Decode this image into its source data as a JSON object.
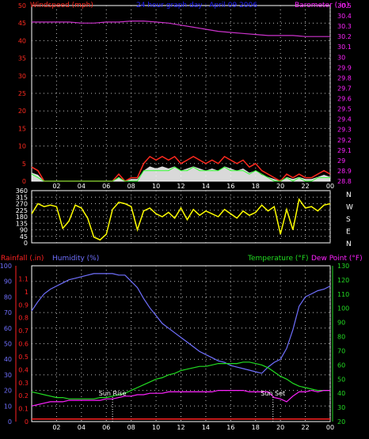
{
  "colors": {
    "background": "#000000",
    "frame": "#ffffff",
    "grid": "#c0c0c0",
    "windspeed": "#ff2a1f",
    "gust": "#ff2a1f",
    "wind_avg": "#33ff33",
    "wind_fill": "#ffffff",
    "barometer": "#cc33cc",
    "direction": "#ffff00",
    "humidity": "#7070ff",
    "temperature": "#22dd22",
    "dewpoint": "#ff22ff",
    "rainfall": "#ff2222",
    "sun_marker": "#ffffff"
  },
  "header": {
    "left": "Windspeed (mph)",
    "center": "24 hour graph day : April 09 2006",
    "right": "Barometer (.in)"
  },
  "lower_header": {
    "rainfall": "Rainfall (.in)",
    "humidity": "Humidity (%)",
    "temperature": "Temperature (°F)",
    "dewpoint": "Dew Point (°F)"
  },
  "sun_labels": {
    "rise": "Sun Rise",
    "set": "Sun Set"
  },
  "chart_data": [
    {
      "type": "line",
      "name": "wind_barometer",
      "x_ticks": [
        "02",
        "04",
        "06",
        "08",
        "10",
        "12",
        "14",
        "16",
        "18",
        "20",
        "22",
        "00"
      ],
      "xlim": [
        0,
        24
      ],
      "y_left": {
        "label": "Windspeed (mph)",
        "ylim": [
          0,
          50
        ],
        "ticks": [
          0,
          5,
          10,
          15,
          20,
          25,
          30,
          35,
          40,
          45,
          50
        ]
      },
      "y_right": {
        "label": "Barometer (.in)",
        "ylim": [
          28.8,
          30.5
        ],
        "ticks": [
          "28.8",
          "28.9",
          "29",
          "29.1",
          "29.2",
          "29.3",
          "29.4",
          "29.5",
          "29.6",
          "29.7",
          "29.8",
          "29.9",
          "30",
          "30.1",
          "30.2",
          "30.3",
          "30.4",
          "30.5"
        ]
      },
      "grid": true,
      "series": [
        {
          "name": "Barometer",
          "axis": "right",
          "x": [
            0,
            1,
            2,
            3,
            4,
            5,
            6,
            7,
            8,
            9,
            10,
            11,
            12,
            13,
            14,
            15,
            16,
            17,
            18,
            19,
            20,
            21,
            22,
            23,
            24
          ],
          "values": [
            30.34,
            30.34,
            30.34,
            30.34,
            30.33,
            30.33,
            30.34,
            30.34,
            30.35,
            30.35,
            30.34,
            30.33,
            30.31,
            30.29,
            30.27,
            30.25,
            30.24,
            30.23,
            30.22,
            30.21,
            30.21,
            30.21,
            30.2,
            30.2,
            30.2
          ]
        },
        {
          "name": "Gust",
          "axis": "left",
          "x": [
            0,
            0.5,
            1,
            1.5,
            2,
            2.5,
            3,
            3.5,
            4,
            4.5,
            5,
            5.5,
            6,
            6.5,
            7,
            7.5,
            8,
            8.5,
            9,
            9.5,
            10,
            10.5,
            11,
            11.5,
            12,
            12.5,
            13,
            13.5,
            14,
            14.5,
            15,
            15.5,
            16,
            16.5,
            17,
            17.5,
            18,
            18.5,
            19,
            19.5,
            20,
            20.5,
            21,
            21.5,
            22,
            22.5,
            23,
            23.5,
            24
          ],
          "values": [
            4,
            3,
            0,
            0,
            0,
            0,
            0,
            0,
            0,
            0,
            0,
            0,
            0,
            0,
            2,
            0,
            1,
            1,
            5,
            7,
            6,
            7,
            6,
            7,
            5,
            6,
            7,
            6,
            5,
            6,
            5,
            7,
            6,
            5,
            6,
            4,
            5,
            3,
            2,
            1,
            0,
            2,
            1,
            2,
            1,
            1,
            2,
            3,
            2
          ]
        },
        {
          "name": "Windspeed",
          "axis": "left",
          "x": [
            0,
            0.5,
            1,
            1.5,
            2,
            2.5,
            3,
            3.5,
            4,
            4.5,
            5,
            5.5,
            6,
            6.5,
            7,
            7.5,
            8,
            8.5,
            9,
            9.5,
            10,
            10.5,
            11,
            11.5,
            12,
            12.5,
            13,
            13.5,
            14,
            14.5,
            15,
            15.5,
            16,
            16.5,
            17,
            17.5,
            18,
            18.5,
            19,
            19.5,
            20,
            20.5,
            21,
            21.5,
            22,
            22.5,
            23,
            23.5,
            24
          ],
          "values": [
            2,
            1,
            0,
            0,
            0,
            0,
            0,
            0,
            0,
            0,
            0,
            0,
            0,
            0,
            1,
            0,
            0,
            0,
            3,
            3,
            3,
            3,
            3,
            4,
            3,
            3,
            4,
            3,
            3,
            3,
            3,
            4,
            3,
            3,
            3,
            2,
            3,
            2,
            1,
            0,
            0,
            1,
            0,
            1,
            0,
            0,
            1,
            1,
            1
          ]
        }
      ]
    },
    {
      "type": "scatter",
      "name": "wind_direction",
      "x_ticks": [
        "02",
        "04",
        "06",
        "08",
        "10",
        "12",
        "14",
        "16",
        "18",
        "20",
        "22",
        "00"
      ],
      "xlim": [
        0,
        24
      ],
      "y_left": {
        "ylim": [
          0,
          360
        ],
        "ticks": [
          0,
          45,
          90,
          135,
          180,
          225,
          270,
          315,
          360
        ]
      },
      "y_right_labels": [
        "N",
        "W",
        "S",
        "E",
        "N"
      ],
      "grid": true,
      "series": [
        {
          "name": "Direction",
          "x": [
            0,
            0.5,
            1,
            1.5,
            2,
            2.5,
            3,
            3.5,
            4,
            4.5,
            5,
            5.5,
            6,
            6.5,
            7,
            7.5,
            8,
            8.5,
            9,
            9.5,
            10,
            10.5,
            11,
            11.5,
            12,
            12.5,
            13,
            13.5,
            14,
            14.5,
            15,
            15.5,
            16,
            16.5,
            17,
            17.5,
            18,
            18.5,
            19,
            19.5,
            20,
            20.5,
            21,
            21.5,
            22,
            22.5,
            23,
            23.5,
            24
          ],
          "values": [
            200,
            270,
            250,
            260,
            250,
            100,
            150,
            260,
            240,
            170,
            40,
            20,
            60,
            230,
            280,
            270,
            250,
            90,
            220,
            240,
            200,
            180,
            210,
            170,
            240,
            160,
            230,
            190,
            220,
            200,
            180,
            230,
            200,
            170,
            220,
            190,
            210,
            260,
            220,
            250,
            60,
            230,
            90,
            300,
            240,
            250,
            220,
            260,
            270
          ]
        }
      ]
    },
    {
      "type": "line",
      "name": "rain_humidity_temp",
      "x_ticks": [
        "02",
        "04",
        "06",
        "08",
        "10",
        "12",
        "14",
        "16",
        "18",
        "20",
        "22",
        "00"
      ],
      "xlim": [
        0,
        24
      ],
      "y_rain": {
        "label": "Rainfall (.in)",
        "ylim": [
          0,
          1.2
        ],
        "ticks": [
          "0",
          "0.1",
          "0.2",
          "0.3",
          "0.4",
          "0.5",
          "0.6",
          "0.7",
          "0.8",
          "0.9",
          "1",
          "1.1"
        ]
      },
      "y_humidity": {
        "label": "Humidity (%)",
        "ylim": [
          0,
          100
        ],
        "ticks": [
          0,
          10,
          20,
          30,
          40,
          50,
          60,
          70,
          80,
          90,
          100
        ]
      },
      "y_temp": {
        "label": "Temperature (°F)",
        "ylim": [
          20,
          130
        ],
        "ticks": [
          20,
          30,
          40,
          50,
          60,
          70,
          80,
          90,
          100,
          110,
          120,
          130
        ]
      },
      "grid": true,
      "annotations": [
        {
          "text": "Sun Rise",
          "x": 6.5
        },
        {
          "text": "Sun Set",
          "x": 19.4
        }
      ],
      "series": [
        {
          "name": "Humidity",
          "axis": "humidity",
          "x": [
            0,
            0.5,
            1,
            1.5,
            2,
            2.5,
            3,
            3.5,
            4,
            4.5,
            5,
            5.5,
            6,
            6.5,
            7,
            7.5,
            8,
            8.5,
            9,
            9.5,
            10,
            10.5,
            11,
            11.5,
            12,
            12.5,
            13,
            13.5,
            14,
            14.5,
            15,
            15.5,
            16,
            16.5,
            17,
            17.5,
            18,
            18.5,
            19,
            19.5,
            20,
            20.5,
            21,
            21.5,
            22,
            22.5,
            23,
            23.5,
            24
          ],
          "values": [
            71,
            77,
            82,
            85,
            87,
            89,
            91,
            92,
            93,
            94,
            95,
            95,
            95,
            95,
            94,
            94,
            90,
            86,
            79,
            73,
            68,
            63,
            60,
            57,
            54,
            51,
            48,
            45,
            43,
            41,
            39,
            38,
            36,
            35,
            34,
            33,
            32,
            31,
            35,
            38,
            40,
            47,
            59,
            74,
            80,
            82,
            84,
            85,
            87
          ]
        },
        {
          "name": "Temperature",
          "axis": "temp",
          "x": [
            0,
            0.5,
            1,
            1.5,
            2,
            2.5,
            3,
            3.5,
            4,
            4.5,
            5,
            5.5,
            6,
            6.5,
            7,
            7.5,
            8,
            8.5,
            9,
            9.5,
            10,
            10.5,
            11,
            11.5,
            12,
            12.5,
            13,
            13.5,
            14,
            14.5,
            15,
            15.5,
            16,
            16.5,
            17,
            17.5,
            18,
            18.5,
            19,
            19.5,
            20,
            20.5,
            21,
            21.5,
            22,
            22.5,
            23,
            23.5,
            24
          ],
          "values": [
            41,
            40,
            39,
            38,
            37,
            37,
            36,
            36,
            36,
            36,
            36,
            37,
            37,
            38,
            39,
            40,
            42,
            44,
            46,
            48,
            50,
            51,
            53,
            54,
            56,
            57,
            58,
            59,
            59,
            60,
            61,
            61,
            61,
            61,
            62,
            62,
            61,
            60,
            58,
            55,
            52,
            50,
            47,
            45,
            44,
            43,
            42,
            42,
            42
          ]
        },
        {
          "name": "Dew Point",
          "axis": "temp",
          "x": [
            0,
            0.5,
            1,
            1.5,
            2,
            2.5,
            3,
            3.5,
            4,
            4.5,
            5,
            5.5,
            6,
            6.5,
            7,
            7.5,
            8,
            8.5,
            9,
            9.5,
            10,
            10.5,
            11,
            11.5,
            12,
            12.5,
            13,
            13.5,
            14,
            14.5,
            15,
            15.5,
            16,
            16.5,
            17,
            17.5,
            18,
            18.5,
            19,
            19.5,
            20,
            20.5,
            21,
            21.5,
            22,
            22.5,
            23,
            23.5,
            24
          ],
          "values": [
            31,
            32,
            33,
            34,
            34,
            34,
            35,
            35,
            35,
            35,
            35,
            35,
            36,
            36,
            37,
            38,
            38,
            39,
            39,
            40,
            40,
            40,
            41,
            41,
            41,
            41,
            41,
            41,
            41,
            41,
            42,
            42,
            42,
            42,
            42,
            41,
            41,
            41,
            41,
            37,
            36,
            34,
            38,
            41,
            41,
            42,
            41,
            42,
            42
          ]
        },
        {
          "name": "Rainfall",
          "axis": "rain",
          "x": [
            0,
            24
          ],
          "values": [
            0.02,
            0.02
          ]
        }
      ]
    }
  ]
}
